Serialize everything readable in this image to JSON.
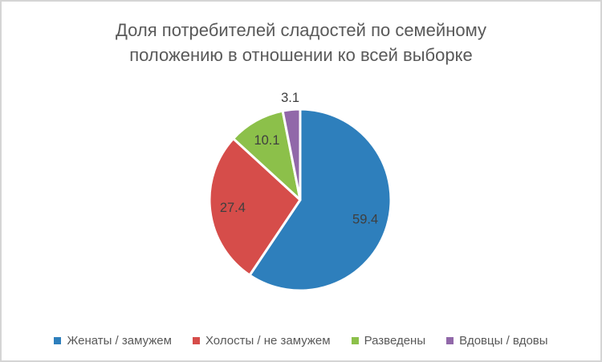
{
  "frame": {
    "background": "#ffffff",
    "border_color": "#d5d5d5"
  },
  "title_lines": [
    "Доля потребителей сладостей по семейному",
    "положению в отношении ко всей выборке"
  ],
  "chart_data": {
    "type": "pie",
    "title": "Доля потребителей сладостей по семейному положению в отношении ко всей выборке",
    "categories": [
      "Женаты / замужем",
      "Холосты / не замужем",
      "Разведены",
      "Вдовцы / вдовы"
    ],
    "values": [
      59.4,
      27.4,
      10.1,
      3.1
    ],
    "data_labels": [
      "59.4",
      "27.4",
      "10.1",
      "3.1"
    ],
    "colors": [
      "#2E7FBC",
      "#D64D4A",
      "#8CC04A",
      "#9168A9"
    ],
    "start_angle_deg": 0,
    "direction": "clockwise",
    "legend_position": "bottom",
    "slice_border_color": "#ffffff",
    "label_color": "#3F3F3F",
    "title_color": "#595959",
    "small_slice_label_outside_threshold": 5
  }
}
